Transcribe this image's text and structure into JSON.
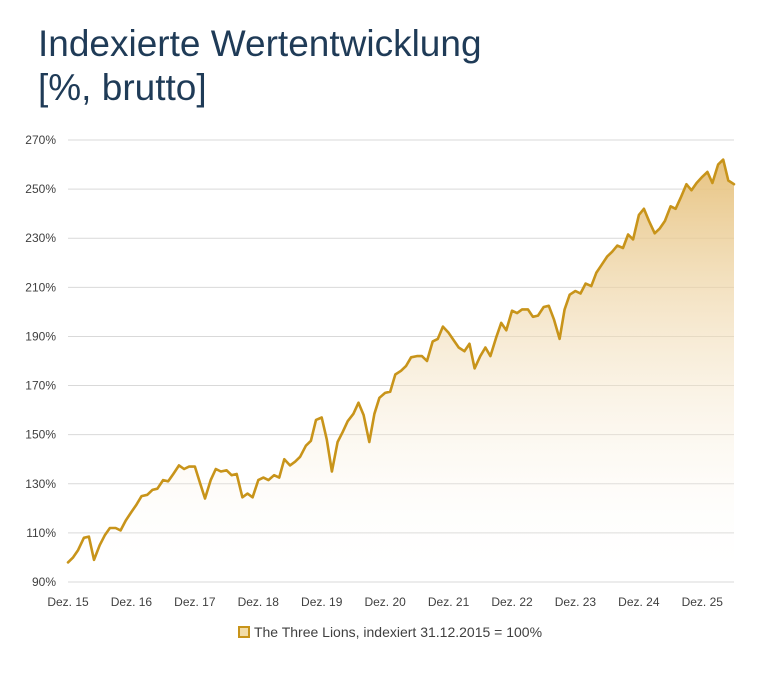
{
  "header": {
    "title_line1": "Indexierte Wertentwicklung",
    "title_line2": "[%, brutto]"
  },
  "colors": {
    "title": "#1f3b57",
    "line": "#c8941a",
    "fill_top": "#e6c07a",
    "grid": "#d9d9d9"
  },
  "chart_data": {
    "type": "area",
    "title": "Indexierte Wertentwicklung [%, brutto]",
    "xlabel": "",
    "ylabel": "",
    "ylim": [
      90,
      270
    ],
    "grid": true,
    "legend_position": "bottom",
    "y_ticks": [
      90,
      110,
      130,
      150,
      170,
      190,
      210,
      230,
      250,
      270
    ],
    "y_tick_labels": [
      "90%",
      "110%",
      "130%",
      "150%",
      "170%",
      "190%",
      "210%",
      "230%",
      "250%",
      "270%"
    ],
    "x_tick_labels": [
      "Dez. 15",
      "Dez. 16",
      "Dez. 17",
      "Dez. 18",
      "Dez. 19",
      "Dez. 20",
      "Dez. 21",
      "Dez. 22",
      "Dez. 23",
      "Dez. 24",
      "Dez. 25"
    ],
    "x_range_years": [
      2015.92,
      2026.42
    ],
    "series": [
      {
        "name": "The Three Lions, indexiert 31.12.2015 = 100%",
        "x": [
          2015.92,
          2016.0,
          2016.08,
          2016.17,
          2016.25,
          2016.33,
          2016.42,
          2016.5,
          2016.58,
          2016.67,
          2016.75,
          2016.83,
          2016.92,
          2017.0,
          2017.08,
          2017.17,
          2017.25,
          2017.33,
          2017.42,
          2017.5,
          2017.58,
          2017.67,
          2017.75,
          2017.83,
          2017.92,
          2018.0,
          2018.08,
          2018.17,
          2018.25,
          2018.33,
          2018.42,
          2018.5,
          2018.58,
          2018.67,
          2018.75,
          2018.83,
          2018.92,
          2019.0,
          2019.08,
          2019.17,
          2019.25,
          2019.33,
          2019.42,
          2019.5,
          2019.58,
          2019.67,
          2019.75,
          2019.83,
          2019.92,
          2020.0,
          2020.08,
          2020.17,
          2020.25,
          2020.33,
          2020.42,
          2020.5,
          2020.58,
          2020.67,
          2020.75,
          2020.83,
          2020.92,
          2021.0,
          2021.08,
          2021.17,
          2021.25,
          2021.33,
          2021.42,
          2021.5,
          2021.58,
          2021.67,
          2021.75,
          2021.83,
          2021.92,
          2022.0,
          2022.08,
          2022.17,
          2022.25,
          2022.33,
          2022.42,
          2022.5,
          2022.58,
          2022.67,
          2022.75,
          2022.83,
          2022.92,
          2023.0,
          2023.08,
          2023.17,
          2023.25,
          2023.33,
          2023.42,
          2023.5,
          2023.58,
          2023.67,
          2023.75,
          2023.83,
          2023.92,
          2024.0,
          2024.08,
          2024.17,
          2024.25,
          2024.33,
          2024.42,
          2024.5,
          2024.58,
          2024.67,
          2024.75,
          2024.83,
          2024.92,
          2025.0,
          2025.08,
          2025.17,
          2025.25,
          2025.33,
          2025.42,
          2025.5,
          2025.58,
          2025.67,
          2025.75,
          2025.83,
          2025.92,
          2026.0,
          2026.08,
          2026.17,
          2026.25,
          2026.33,
          2026.42
        ],
        "values": [
          98,
          100,
          103,
          108,
          108.5,
          99,
          105,
          109,
          112,
          112,
          111,
          115,
          118.5,
          121.5,
          125,
          125.5,
          127.5,
          128,
          131.5,
          131,
          134,
          137.5,
          136,
          137,
          137,
          130.5,
          124,
          131.5,
          136,
          135,
          135.5,
          133.5,
          134,
          124.5,
          126,
          124.5,
          131.5,
          132.5,
          131.5,
          133.5,
          132.5,
          140,
          137.5,
          139,
          141,
          145.5,
          147.5,
          156,
          157,
          148,
          135,
          147,
          151,
          155.5,
          158.5,
          163,
          158,
          147,
          158.5,
          165,
          167,
          167.5,
          174.5,
          176,
          178,
          181.5,
          182,
          182,
          180,
          188,
          189,
          194,
          191.5,
          188.5,
          185.5,
          184,
          187,
          177,
          182,
          185.5,
          182,
          189.5,
          195.5,
          192.5,
          200.5,
          199.5,
          201,
          201,
          198,
          198.5,
          202,
          202.5,
          197,
          189,
          201,
          207,
          208.5,
          207.5,
          211.5,
          210.5,
          216,
          219,
          222.5,
          224.5,
          227,
          226,
          231.5,
          229.5,
          239.5,
          242,
          237,
          232,
          234,
          237,
          243,
          242,
          246.5,
          252,
          249.5,
          252.5,
          255,
          257,
          252.5,
          260,
          262,
          253.5,
          252
        ]
      }
    ]
  }
}
